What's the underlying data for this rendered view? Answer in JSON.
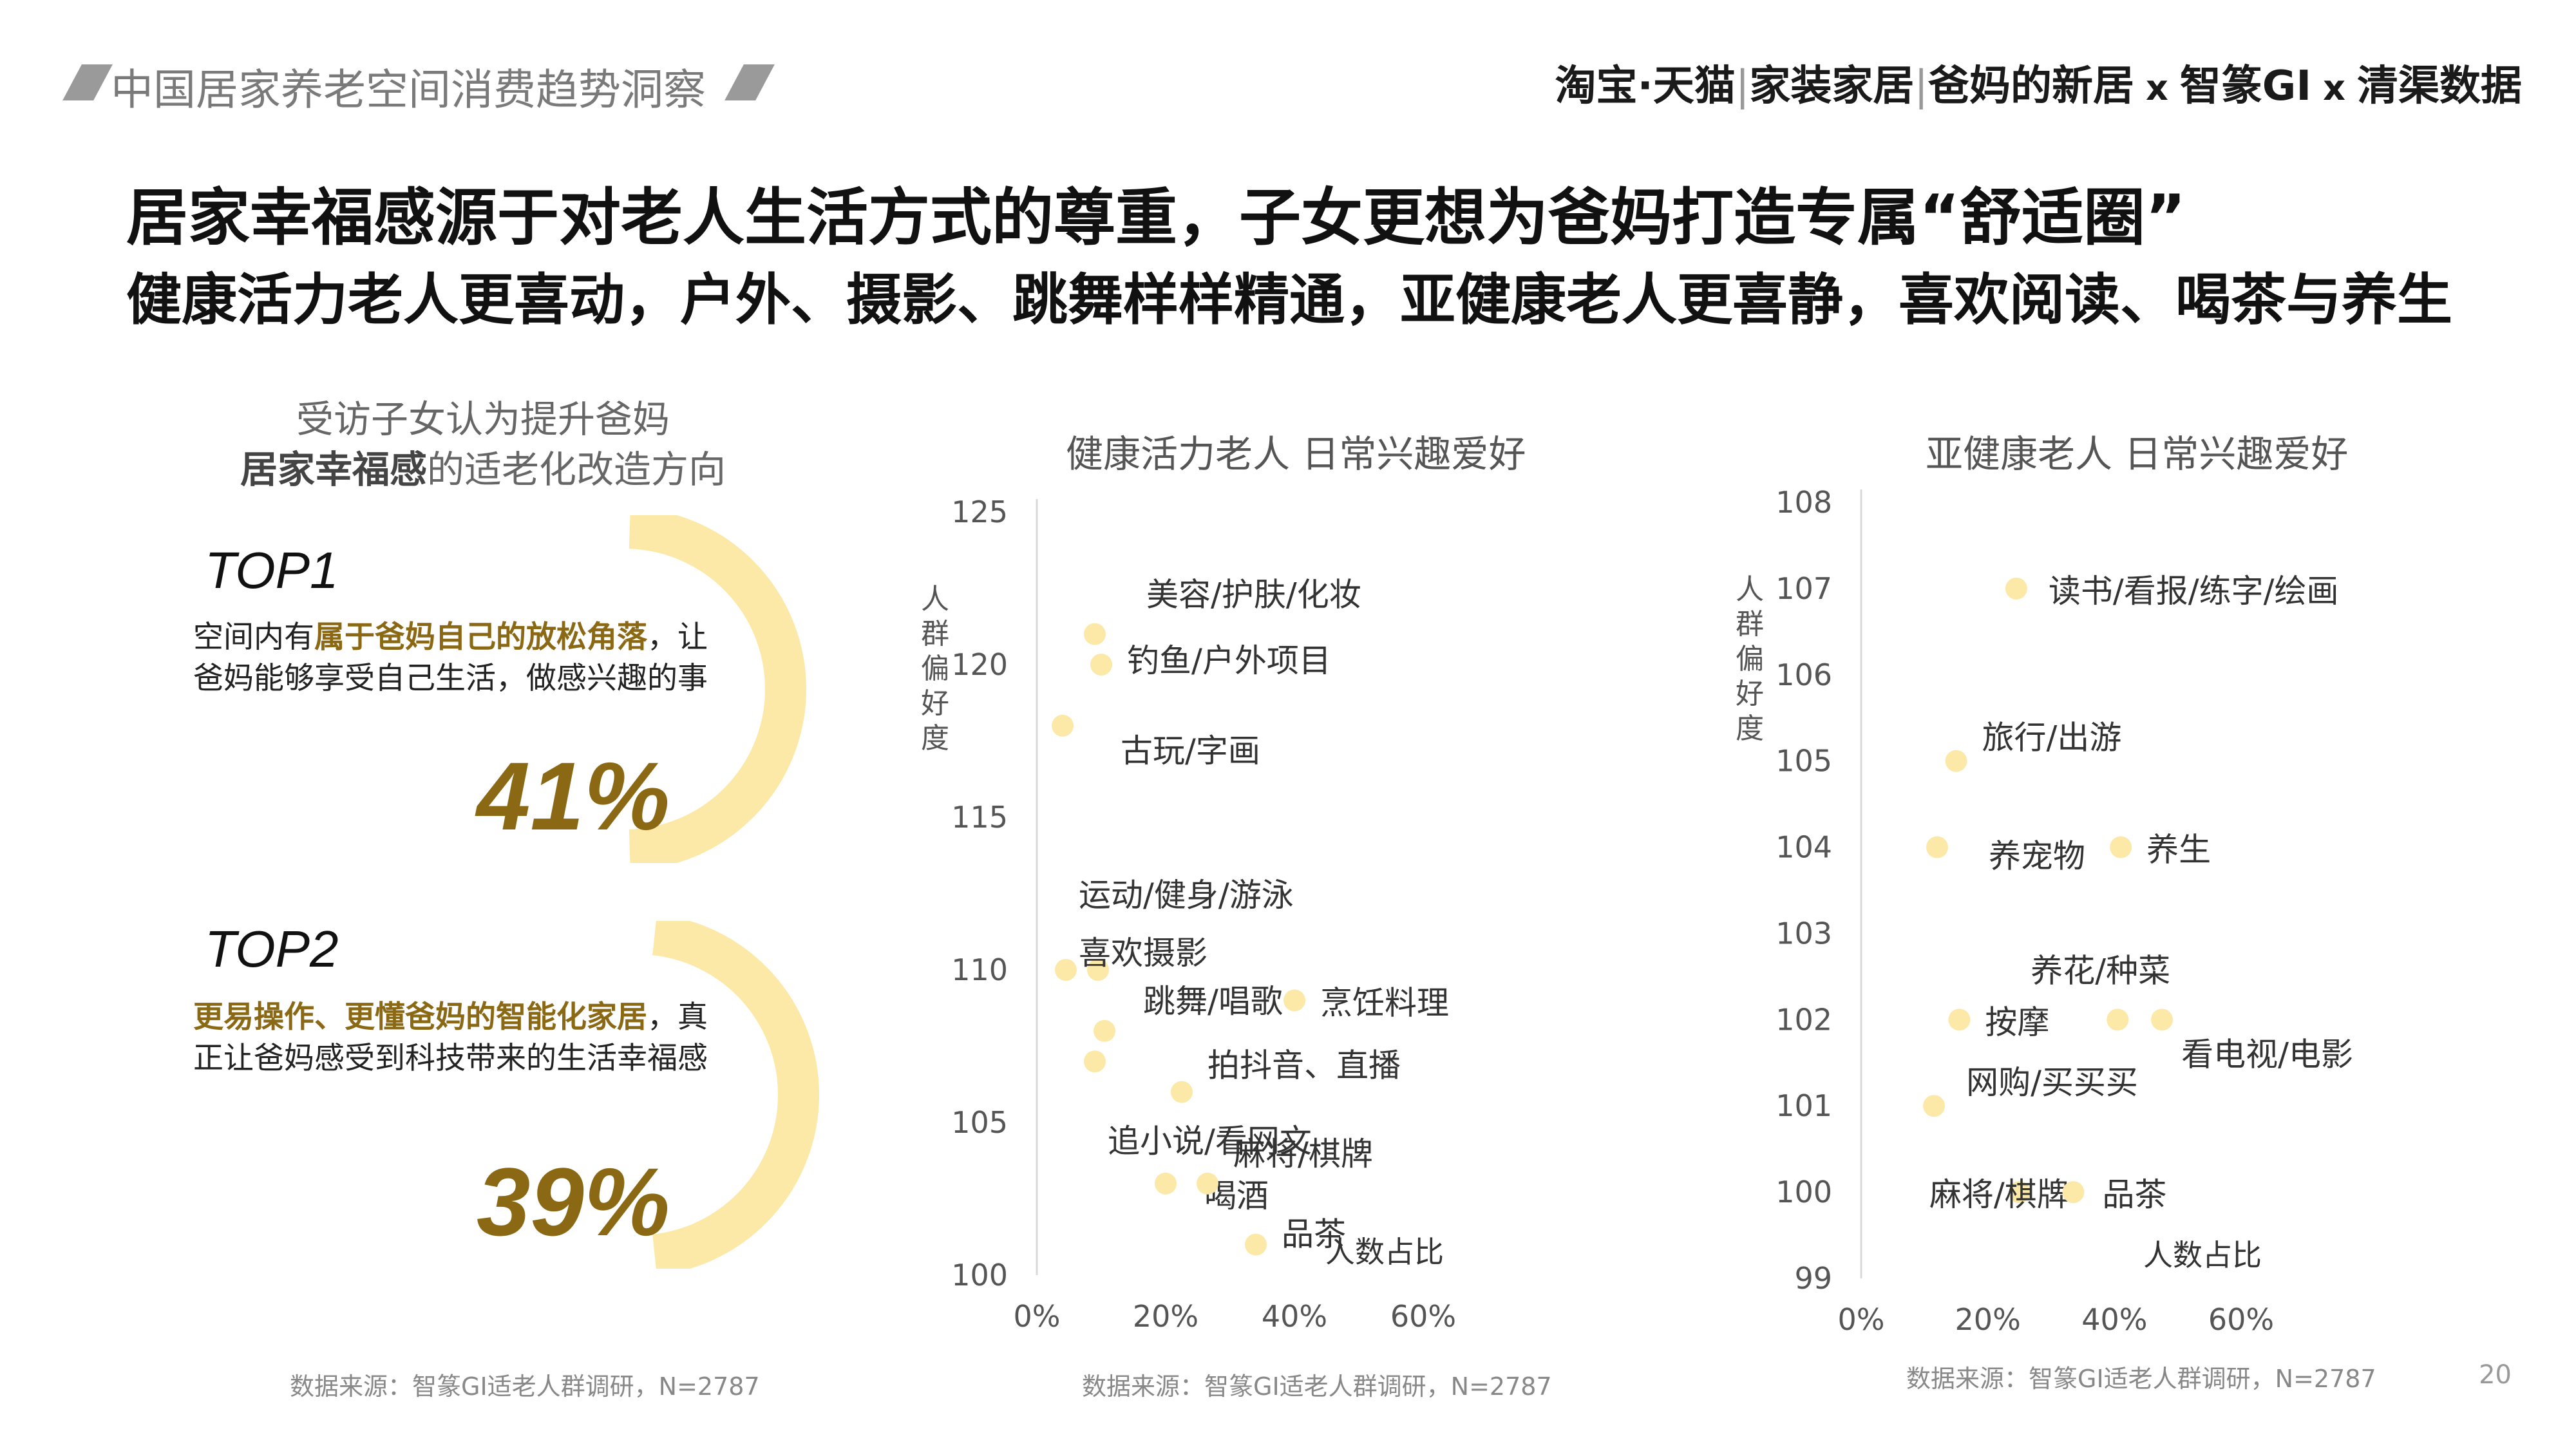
{
  "header": {
    "report_title": "中国居家养老空间消费趋势洞察",
    "brand": {
      "p1": "淘宝·天猫",
      "p2": "家装家居",
      "p3": "爸妈的新居",
      "x1": "x",
      "p4": "智篆GI",
      "x2": "x",
      "p5": "清渠数据"
    }
  },
  "title": {
    "line1": "居家幸福感源于对老人生活方式的尊重，子女更想为爸妈打造专属“舒适圈”",
    "line2": "健康活力老人更喜动，户外、摄影、跳舞样样精通，亚健康老人更喜静，喜欢阅读、喝茶与养生"
  },
  "left": {
    "caption_line1": "受访子女认为提升爸妈",
    "caption_bold": "居家幸福感",
    "caption_rest": "的适老化改造方向",
    "top1": {
      "label": "TOP1",
      "desc_pre": "空间内有",
      "desc_hl": "属于爸妈自己的放松角落",
      "desc_post": "，让爸妈能够享受自己生活，做感兴趣的事",
      "pct_text": "41%",
      "value": 41
    },
    "top2": {
      "label": "TOP2",
      "desc_hl": "更易操作、更懂爸妈的智能化家居",
      "desc_post": "，真正让爸妈感受到科技带来的生活幸福感",
      "pct_text": "39%",
      "value": 39
    },
    "source": "数据来源：智篆GI适老人群调研，N=2787",
    "arc_color": "#fce9a8"
  },
  "chart_data": [
    {
      "type": "scatter",
      "title": "健康活力老人 日常兴趣爱好",
      "ylabel": "人群偏好度",
      "xlabel": "人数占比",
      "xlim": [
        0,
        0.6
      ],
      "ylim": [
        100,
        125
      ],
      "xticks": [
        "0%",
        "20%",
        "40%",
        "60%"
      ],
      "yticks": [
        "100",
        "105",
        "110",
        "115",
        "120",
        "125"
      ],
      "point_color": "#fce9a8",
      "points": [
        {
          "label": "美容/护肤/化妆",
          "x": 0.09,
          "y": 121
        },
        {
          "label": "钓鱼/户外项目",
          "x": 0.1,
          "y": 120
        },
        {
          "label": "古玩/字画",
          "x": 0.04,
          "y": 118
        },
        {
          "label": "运动/健身/游泳",
          "x": 0.045,
          "y": 110
        },
        {
          "label": "喜欢摄影",
          "x": 0.095,
          "y": 110
        },
        {
          "label": "跳舞/唱歌",
          "x": 0.105,
          "y": 108
        },
        {
          "label": "烹饪料理",
          "x": 0.4,
          "y": 109
        },
        {
          "label": "拍抖音、直播",
          "x": 0.225,
          "y": 106
        },
        {
          "label": "追小说/看网文",
          "x": 0.09,
          "y": 107
        },
        {
          "label": "喝酒",
          "x": 0.2,
          "y": 103
        },
        {
          "label": "麻将/棋牌",
          "x": 0.265,
          "y": 103
        },
        {
          "label": "品茶",
          "x": 0.34,
          "y": 101
        }
      ],
      "source": "数据来源：智篆GI适老人群调研，N=2787"
    },
    {
      "type": "scatter",
      "title": "亚健康老人 日常兴趣爱好",
      "ylabel": "人群偏好度",
      "xlabel": "人数占比",
      "xlim": [
        0,
        0.6
      ],
      "ylim": [
        99,
        108
      ],
      "xticks": [
        "0%",
        "20%",
        "40%",
        "60%"
      ],
      "yticks": [
        "99",
        "100",
        "101",
        "102",
        "103",
        "104",
        "105",
        "106",
        "107",
        "108"
      ],
      "point_color": "#fce9a8",
      "points": [
        {
          "label": "读书/看报/练字/绘画",
          "x": 0.245,
          "y": 107
        },
        {
          "label": "旅行/出游",
          "x": 0.15,
          "y": 105
        },
        {
          "label": "养宠物",
          "x": 0.12,
          "y": 104
        },
        {
          "label": "养生",
          "x": 0.41,
          "y": 104
        },
        {
          "label": "养花/种菜",
          "x": 0.405,
          "y": 102
        },
        {
          "label": "按摩",
          "x": 0.155,
          "y": 102
        },
        {
          "label": "看电视/电影",
          "x": 0.475,
          "y": 102
        },
        {
          "label": "网购/买买买",
          "x": 0.115,
          "y": 101
        },
        {
          "label": "麻将/棋牌",
          "x": 0.25,
          "y": 100
        },
        {
          "label": "品茶",
          "x": 0.335,
          "y": 100
        }
      ],
      "source": "数据来源：智篆GI适老人群调研，N=2787"
    }
  ],
  "page_number": "20"
}
